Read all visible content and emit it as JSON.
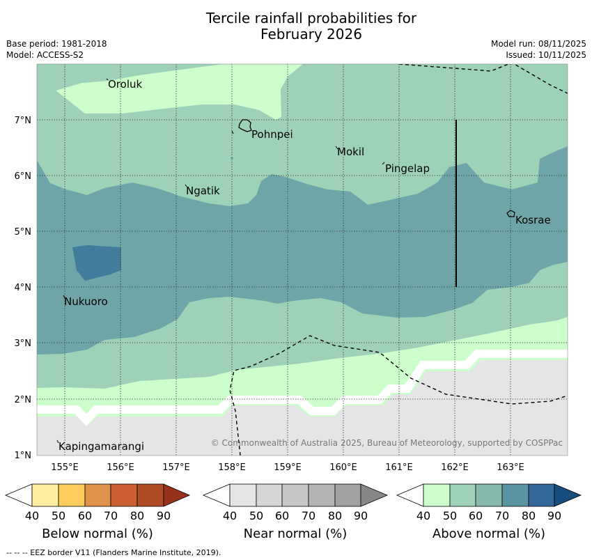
{
  "title": {
    "line1": "Tercile rainfall probabilities for",
    "line2": "February 2026"
  },
  "meta": {
    "base_period": "Base period: 1981-2018",
    "model": "Model: ACCESS-S2",
    "model_run": "Model run: 08/11/2025",
    "issued": "Issued: 10/11/2025"
  },
  "map": {
    "lat_labels": [
      "7°N",
      "6°N",
      "5°N",
      "4°N",
      "3°N",
      "2°N",
      "1°N"
    ],
    "lon_labels": [
      "155°E",
      "156°E",
      "157°E",
      "158°E",
      "159°E",
      "160°E",
      "161°E",
      "162°E",
      "163°E"
    ],
    "places": {
      "oroluk": "Oroluk",
      "pohnpei": "Pohnpei",
      "mokil": "Mokil",
      "pingelap": "Pingelap",
      "ngatik": "Ngatik",
      "kosrae": "Kosrae",
      "nukuoro": "Nukuoro",
      "kapingamarangi": "Kapingamarangi"
    },
    "credit": "© Commonwealth of Australia 2025, Bureau of Meteorology, supported by COSPPac"
  },
  "colorbars": {
    "below": {
      "label": "Below normal (%)",
      "ticks": [
        "40",
        "50",
        "60",
        "70",
        "80",
        "90"
      ],
      "colors": [
        "#ffffff",
        "#ffeda0",
        "#fecc5c",
        "#e1924a",
        "#cb5f31",
        "#b04a27",
        "#96321c"
      ]
    },
    "near": {
      "label": "Near normal (%)",
      "ticks": [
        "40",
        "50",
        "60",
        "70",
        "80",
        "90"
      ],
      "colors": [
        "#ffffff",
        "#e5e5e5",
        "#d6d6d6",
        "#c6c6c6",
        "#b4b4b4",
        "#a1a1a1",
        "#878787"
      ]
    },
    "above": {
      "label": "Above normal (%)",
      "ticks": [
        "40",
        "50",
        "60",
        "70",
        "80",
        "90"
      ],
      "colors": [
        "#ffffff",
        "#ccffcc",
        "#9dd1b8",
        "#87b9ac",
        "#5b93a0",
        "#336699",
        "#174d7f"
      ]
    }
  },
  "footnote": "--  --  -- EEZ border V11 (Flanders Marine Institute, 2019)."
}
